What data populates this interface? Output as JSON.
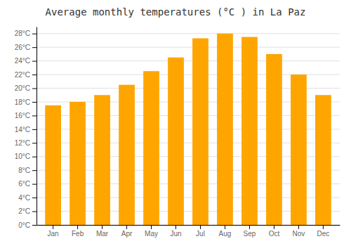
{
  "chart_data": {
    "type": "bar",
    "title": "Average monthly temperatures (°C ) in La Paz",
    "categories": [
      "Jan",
      "Feb",
      "Mar",
      "Apr",
      "May",
      "Jun",
      "Jul",
      "Aug",
      "Sep",
      "Oct",
      "Nov",
      "Dec"
    ],
    "values": [
      17.5,
      18.0,
      19.0,
      20.5,
      22.5,
      24.5,
      27.3,
      28.0,
      27.5,
      25.0,
      22.0,
      19.0
    ],
    "color": "#FFA500",
    "ylim": [
      0,
      29
    ],
    "yticks": [
      {
        "value": 0,
        "label": "0°C"
      },
      {
        "value": 2,
        "label": "2°C"
      },
      {
        "value": 4,
        "label": "4°C"
      },
      {
        "value": 6,
        "label": "6°C"
      },
      {
        "value": 8,
        "label": "8°C"
      },
      {
        "value": 10,
        "label": "10°C"
      },
      {
        "value": 12,
        "label": "12°C"
      },
      {
        "value": 14,
        "label": "14°C"
      },
      {
        "value": 16,
        "label": "16°C"
      },
      {
        "value": 18,
        "label": "18°C"
      },
      {
        "value": 20,
        "label": "20°C"
      },
      {
        "value": 22,
        "label": "22°C"
      },
      {
        "value": 24,
        "label": "24°C"
      },
      {
        "value": 26,
        "label": "26°C"
      },
      {
        "value": 28,
        "label": "28°C"
      }
    ],
    "grid": true
  }
}
